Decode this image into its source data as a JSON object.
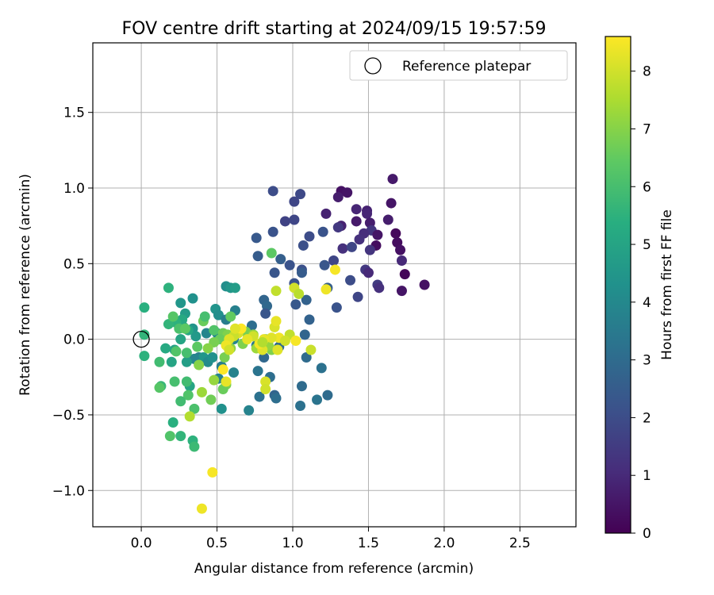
{
  "chart_data": {
    "type": "scatter",
    "title": "FOV centre drift starting at 2024/09/15 19:57:59",
    "xlabel": "Angular distance from reference (arcmin)",
    "ylabel": "Rotation from reference (arcmin)",
    "xlim": [
      -0.32,
      2.87
    ],
    "ylim": [
      -1.24,
      1.96
    ],
    "xticks": [
      0.0,
      0.5,
      1.0,
      1.5,
      2.0,
      2.5
    ],
    "xtick_labels": [
      "0.0",
      "0.5",
      "1.0",
      "1.5",
      "2.0",
      "2.5"
    ],
    "yticks": [
      -1.0,
      -0.5,
      0.0,
      0.5,
      1.0,
      1.5
    ],
    "ytick_labels": [
      "−1.0",
      "−0.5",
      "0.0",
      "0.5",
      "1.0",
      "1.5"
    ],
    "grid": true,
    "legend": {
      "position": "top-right",
      "entries": [
        {
          "label": "Reference platepar",
          "marker": "open-circle"
        }
      ]
    },
    "reference_point": {
      "x": 0.0,
      "y": 0.0,
      "marker": "open-circle"
    },
    "colorbar": {
      "label": "Hours from first FF file",
      "colormap": "viridis",
      "range": [
        0,
        8.6
      ],
      "ticks": [
        0,
        1,
        2,
        3,
        4,
        5,
        6,
        7,
        8
      ],
      "tick_labels": [
        "0",
        "1",
        "2",
        "3",
        "4",
        "5",
        "6",
        "7",
        "8"
      ]
    },
    "points": [
      {
        "x": 1.66,
        "y": 1.06,
        "t": 0.6
      },
      {
        "x": 1.32,
        "y": 0.98,
        "t": 0.4
      },
      {
        "x": 1.36,
        "y": 0.97,
        "t": 0.5
      },
      {
        "x": 1.3,
        "y": 0.94,
        "t": 0.7
      },
      {
        "x": 1.65,
        "y": 0.9,
        "t": 0.5
      },
      {
        "x": 1.22,
        "y": 0.83,
        "t": 0.8
      },
      {
        "x": 1.42,
        "y": 0.86,
        "t": 0.9
      },
      {
        "x": 1.49,
        "y": 0.85,
        "t": 0.8
      },
      {
        "x": 1.49,
        "y": 0.83,
        "t": 0.9
      },
      {
        "x": 1.63,
        "y": 0.79,
        "t": 0.7
      },
      {
        "x": 1.42,
        "y": 0.78,
        "t": 0.6
      },
      {
        "x": 1.51,
        "y": 0.77,
        "t": 0.7
      },
      {
        "x": 1.32,
        "y": 0.75,
        "t": 0.8
      },
      {
        "x": 1.3,
        "y": 0.74,
        "t": 1.4
      },
      {
        "x": 1.52,
        "y": 0.72,
        "t": 1.3
      },
      {
        "x": 1.47,
        "y": 0.7,
        "t": 1.1
      },
      {
        "x": 1.68,
        "y": 0.7,
        "t": 0.2
      },
      {
        "x": 1.56,
        "y": 0.69,
        "t": 0.5
      },
      {
        "x": 1.44,
        "y": 0.66,
        "t": 1.2
      },
      {
        "x": 1.69,
        "y": 0.64,
        "t": 0.3
      },
      {
        "x": 1.55,
        "y": 0.62,
        "t": 0.3
      },
      {
        "x": 1.33,
        "y": 0.6,
        "t": 1.2
      },
      {
        "x": 1.51,
        "y": 0.59,
        "t": 1.3
      },
      {
        "x": 1.71,
        "y": 0.59,
        "t": 0.4
      },
      {
        "x": 1.72,
        "y": 0.52,
        "t": 1.0
      },
      {
        "x": 1.48,
        "y": 0.46,
        "t": 1.4
      },
      {
        "x": 1.5,
        "y": 0.44,
        "t": 1.0
      },
      {
        "x": 1.74,
        "y": 0.43,
        "t": 0.1
      },
      {
        "x": 1.56,
        "y": 0.36,
        "t": 1.5
      },
      {
        "x": 1.57,
        "y": 0.34,
        "t": 1.2
      },
      {
        "x": 1.87,
        "y": 0.36,
        "t": 0.4
      },
      {
        "x": 1.72,
        "y": 0.32,
        "t": 0.5
      },
      {
        "x": 1.43,
        "y": 0.28,
        "t": 1.8
      },
      {
        "x": 1.38,
        "y": 0.39,
        "t": 2.0
      },
      {
        "x": 1.39,
        "y": 0.61,
        "t": 1.8
      },
      {
        "x": 0.87,
        "y": 0.98,
        "t": 2.0
      },
      {
        "x": 1.05,
        "y": 0.96,
        "t": 1.9
      },
      {
        "x": 1.01,
        "y": 0.91,
        "t": 1.8
      },
      {
        "x": 0.95,
        "y": 0.78,
        "t": 1.7
      },
      {
        "x": 1.01,
        "y": 0.79,
        "t": 1.8
      },
      {
        "x": 1.2,
        "y": 0.71,
        "t": 2.2
      },
      {
        "x": 1.11,
        "y": 0.68,
        "t": 2.0
      },
      {
        "x": 0.87,
        "y": 0.71,
        "t": 2.2
      },
      {
        "x": 0.76,
        "y": 0.67,
        "t": 2.4
      },
      {
        "x": 1.07,
        "y": 0.62,
        "t": 2.1
      },
      {
        "x": 1.27,
        "y": 0.52,
        "t": 1.8
      },
      {
        "x": 1.21,
        "y": 0.49,
        "t": 2.3
      },
      {
        "x": 0.77,
        "y": 0.55,
        "t": 2.5
      },
      {
        "x": 0.92,
        "y": 0.53,
        "t": 2.6
      },
      {
        "x": 0.98,
        "y": 0.49,
        "t": 2.2
      },
      {
        "x": 1.06,
        "y": 0.46,
        "t": 2.1
      },
      {
        "x": 0.88,
        "y": 0.44,
        "t": 2.3
      },
      {
        "x": 1.06,
        "y": 0.44,
        "t": 2.5
      },
      {
        "x": 1.01,
        "y": 0.37,
        "t": 2.2
      },
      {
        "x": 1.23,
        "y": 0.34,
        "t": 2.6
      },
      {
        "x": 1.09,
        "y": 0.26,
        "t": 2.7
      },
      {
        "x": 1.02,
        "y": 0.23,
        "t": 2.4
      },
      {
        "x": 1.29,
        "y": 0.21,
        "t": 2.2
      },
      {
        "x": 0.81,
        "y": 0.26,
        "t": 2.8
      },
      {
        "x": 0.83,
        "y": 0.22,
        "t": 2.9
      },
      {
        "x": 0.82,
        "y": 0.17,
        "t": 2.3
      },
      {
        "x": 1.11,
        "y": 0.13,
        "t": 2.7
      },
      {
        "x": 0.73,
        "y": 0.09,
        "t": 3.1
      },
      {
        "x": 0.91,
        "y": -0.05,
        "t": 3.0
      },
      {
        "x": 1.08,
        "y": 0.03,
        "t": 2.8
      },
      {
        "x": 1.09,
        "y": -0.12,
        "t": 3.0
      },
      {
        "x": 1.19,
        "y": -0.19,
        "t": 3.2
      },
      {
        "x": 0.81,
        "y": -0.12,
        "t": 2.9
      },
      {
        "x": 0.77,
        "y": -0.21,
        "t": 3.3
      },
      {
        "x": 0.85,
        "y": -0.25,
        "t": 3.1
      },
      {
        "x": 1.06,
        "y": -0.31,
        "t": 3.0
      },
      {
        "x": 0.78,
        "y": -0.38,
        "t": 3.2
      },
      {
        "x": 0.88,
        "y": -0.37,
        "t": 2.8
      },
      {
        "x": 0.89,
        "y": -0.39,
        "t": 3.1
      },
      {
        "x": 1.23,
        "y": -0.37,
        "t": 3.0
      },
      {
        "x": 1.16,
        "y": -0.4,
        "t": 3.3
      },
      {
        "x": 1.05,
        "y": -0.44,
        "t": 3.2
      },
      {
        "x": 0.71,
        "y": -0.47,
        "t": 3.8
      },
      {
        "x": 0.76,
        "y": -0.04,
        "t": 3.4
      },
      {
        "x": 0.62,
        "y": 0.19,
        "t": 3.7
      },
      {
        "x": 0.56,
        "y": 0.35,
        "t": 4.2
      },
      {
        "x": 0.59,
        "y": 0.34,
        "t": 4.5
      },
      {
        "x": 0.62,
        "y": 0.34,
        "t": 4.7
      },
      {
        "x": 0.49,
        "y": 0.2,
        "t": 4.4
      },
      {
        "x": 0.51,
        "y": 0.16,
        "t": 4.2
      },
      {
        "x": 0.56,
        "y": 0.13,
        "t": 3.6
      },
      {
        "x": 0.26,
        "y": 0.24,
        "t": 4.5
      },
      {
        "x": 0.34,
        "y": 0.27,
        "t": 4.3
      },
      {
        "x": 0.29,
        "y": 0.17,
        "t": 4.7
      },
      {
        "x": 0.34,
        "y": 0.07,
        "t": 4.4
      },
      {
        "x": 0.36,
        "y": 0.02,
        "t": 4.6
      },
      {
        "x": 0.43,
        "y": 0.04,
        "t": 3.9
      },
      {
        "x": 0.5,
        "y": 0.04,
        "t": 4.0
      },
      {
        "x": 0.55,
        "y": 0.01,
        "t": 4.2
      },
      {
        "x": 0.61,
        "y": 0.0,
        "t": 3.9
      },
      {
        "x": 0.38,
        "y": -0.12,
        "t": 3.6
      },
      {
        "x": 0.41,
        "y": -0.12,
        "t": 4.5
      },
      {
        "x": 0.44,
        "y": -0.15,
        "t": 4.1
      },
      {
        "x": 0.35,
        "y": -0.13,
        "t": 3.9
      },
      {
        "x": 0.47,
        "y": -0.12,
        "t": 4.3
      },
      {
        "x": 0.53,
        "y": -0.18,
        "t": 3.6
      },
      {
        "x": 0.61,
        "y": -0.22,
        "t": 3.8
      },
      {
        "x": 0.51,
        "y": -0.26,
        "t": 3.8
      },
      {
        "x": 0.53,
        "y": -0.46,
        "t": 4.3
      },
      {
        "x": 0.32,
        "y": -0.31,
        "t": 5.0
      },
      {
        "x": 0.3,
        "y": -0.15,
        "t": 4.8
      },
      {
        "x": 0.22,
        "y": -0.07,
        "t": 4.9
      },
      {
        "x": 0.2,
        "y": -0.15,
        "t": 5.0
      },
      {
        "x": 0.16,
        "y": -0.06,
        "t": 5.2
      },
      {
        "x": 0.26,
        "y": 0.0,
        "t": 5.0
      },
      {
        "x": 0.31,
        "y": 0.06,
        "t": 5.1
      },
      {
        "x": 0.28,
        "y": 0.08,
        "t": 5.3
      },
      {
        "x": 0.27,
        "y": 0.13,
        "t": 5.2
      },
      {
        "x": 0.23,
        "y": 0.11,
        "t": 5.5
      },
      {
        "x": 0.18,
        "y": 0.1,
        "t": 5.6
      },
      {
        "x": 0.02,
        "y": 0.21,
        "t": 5.4
      },
      {
        "x": 0.02,
        "y": 0.03,
        "t": 5.6
      },
      {
        "x": 0.02,
        "y": -0.11,
        "t": 5.5
      },
      {
        "x": 0.18,
        "y": 0.34,
        "t": 5.5
      },
      {
        "x": 0.21,
        "y": -0.55,
        "t": 5.4
      },
      {
        "x": 0.34,
        "y": -0.67,
        "t": 5.5
      },
      {
        "x": 0.35,
        "y": -0.71,
        "t": 5.8
      },
      {
        "x": 0.26,
        "y": -0.64,
        "t": 5.6
      },
      {
        "x": 0.19,
        "y": -0.64,
        "t": 6.2
      },
      {
        "x": 0.12,
        "y": -0.15,
        "t": 5.9
      },
      {
        "x": 0.13,
        "y": -0.31,
        "t": 5.7
      },
      {
        "x": 0.12,
        "y": -0.32,
        "t": 6.3
      },
      {
        "x": 0.22,
        "y": -0.28,
        "t": 6.0
      },
      {
        "x": 0.3,
        "y": -0.28,
        "t": 5.9
      },
      {
        "x": 0.31,
        "y": -0.37,
        "t": 6.2
      },
      {
        "x": 0.35,
        "y": -0.46,
        "t": 6.1
      },
      {
        "x": 0.26,
        "y": -0.41,
        "t": 5.9
      },
      {
        "x": 0.23,
        "y": -0.08,
        "t": 6.2
      },
      {
        "x": 0.3,
        "y": -0.09,
        "t": 6.0
      },
      {
        "x": 0.37,
        "y": -0.05,
        "t": 6.4
      },
      {
        "x": 0.21,
        "y": 0.15,
        "t": 6.3
      },
      {
        "x": 0.25,
        "y": 0.07,
        "t": 6.1
      },
      {
        "x": 0.29,
        "y": 0.07,
        "t": 6.4
      },
      {
        "x": 0.41,
        "y": 0.12,
        "t": 6.6
      },
      {
        "x": 0.42,
        "y": 0.15,
        "t": 6.0
      },
      {
        "x": 0.48,
        "y": 0.06,
        "t": 6.2
      },
      {
        "x": 0.54,
        "y": 0.04,
        "t": 6.7
      },
      {
        "x": 0.57,
        "y": 0.03,
        "t": 6.9
      },
      {
        "x": 0.59,
        "y": 0.15,
        "t": 6.5
      },
      {
        "x": 0.63,
        "y": 0.05,
        "t": 7.2
      },
      {
        "x": 0.69,
        "y": 0.05,
        "t": 6.8
      },
      {
        "x": 0.74,
        "y": 0.03,
        "t": 7.2
      },
      {
        "x": 0.67,
        "y": -0.03,
        "t": 6.9
      },
      {
        "x": 0.59,
        "y": -0.06,
        "t": 7.1
      },
      {
        "x": 0.55,
        "y": -0.12,
        "t": 6.8
      },
      {
        "x": 0.52,
        "y": 0.0,
        "t": 6.6
      },
      {
        "x": 0.48,
        "y": -0.02,
        "t": 6.8
      },
      {
        "x": 0.44,
        "y": -0.06,
        "t": 7.0
      },
      {
        "x": 0.38,
        "y": -0.17,
        "t": 7.0
      },
      {
        "x": 0.48,
        "y": -0.27,
        "t": 7.2
      },
      {
        "x": 0.56,
        "y": -0.3,
        "t": 6.9
      },
      {
        "x": 0.54,
        "y": -0.33,
        "t": 6.6
      },
      {
        "x": 0.46,
        "y": -0.4,
        "t": 6.7
      },
      {
        "x": 0.4,
        "y": -0.35,
        "t": 7.3
      },
      {
        "x": 0.32,
        "y": -0.51,
        "t": 7.6
      },
      {
        "x": 0.82,
        "y": 0.0,
        "t": 6.8
      },
      {
        "x": 0.78,
        "y": -0.03,
        "t": 7.0
      },
      {
        "x": 0.76,
        "y": -0.06,
        "t": 7.3
      },
      {
        "x": 0.86,
        "y": -0.07,
        "t": 6.9
      },
      {
        "x": 0.84,
        "y": -0.04,
        "t": 7.2
      },
      {
        "x": 0.86,
        "y": 0.57,
        "t": 6.4
      },
      {
        "x": 0.89,
        "y": 0.32,
        "t": 7.8
      },
      {
        "x": 0.98,
        "y": 0.03,
        "t": 7.8
      },
      {
        "x": 0.88,
        "y": 0.08,
        "t": 8.1
      },
      {
        "x": 0.89,
        "y": 0.12,
        "t": 8.3
      },
      {
        "x": 0.91,
        "y": 0.01,
        "t": 8.4
      },
      {
        "x": 0.86,
        "y": 0.01,
        "t": 8.2
      },
      {
        "x": 0.95,
        "y": -0.01,
        "t": 8.0
      },
      {
        "x": 0.81,
        "y": 0.0,
        "t": 8.3
      },
      {
        "x": 0.8,
        "y": -0.07,
        "t": 8.2
      },
      {
        "x": 0.78,
        "y": -0.03,
        "t": 8.5
      },
      {
        "x": 0.74,
        "y": 0.02,
        "t": 8.0
      },
      {
        "x": 0.7,
        "y": 0.0,
        "t": 8.3
      },
      {
        "x": 0.64,
        "y": 0.04,
        "t": 8.1
      },
      {
        "x": 0.61,
        "y": 0.02,
        "t": 7.9
      },
      {
        "x": 0.58,
        "y": 0.0,
        "t": 8.2
      },
      {
        "x": 0.56,
        "y": -0.04,
        "t": 8.4
      },
      {
        "x": 0.58,
        "y": -0.07,
        "t": 8.0
      },
      {
        "x": 0.54,
        "y": -0.2,
        "t": 8.6
      },
      {
        "x": 0.56,
        "y": -0.28,
        "t": 8.3
      },
      {
        "x": 0.82,
        "y": -0.28,
        "t": 8.1
      },
      {
        "x": 0.82,
        "y": -0.33,
        "t": 8.0
      },
      {
        "x": 1.01,
        "y": 0.34,
        "t": 8.0
      },
      {
        "x": 1.04,
        "y": 0.3,
        "t": 7.7
      },
      {
        "x": 1.02,
        "y": -0.01,
        "t": 8.5
      },
      {
        "x": 1.12,
        "y": -0.07,
        "t": 7.9
      },
      {
        "x": 1.22,
        "y": 0.33,
        "t": 8.4
      },
      {
        "x": 1.28,
        "y": 0.46,
        "t": 8.5
      },
      {
        "x": 0.47,
        "y": -0.88,
        "t": 8.5
      },
      {
        "x": 0.4,
        "y": -1.12,
        "t": 8.4
      },
      {
        "x": 0.66,
        "y": 0.07,
        "t": 8.6
      },
      {
        "x": 0.9,
        "y": -0.07,
        "t": 8.2
      },
      {
        "x": 0.8,
        "y": -0.02,
        "t": 7.6
      },
      {
        "x": 0.62,
        "y": 0.07,
        "t": 8.2
      }
    ]
  }
}
